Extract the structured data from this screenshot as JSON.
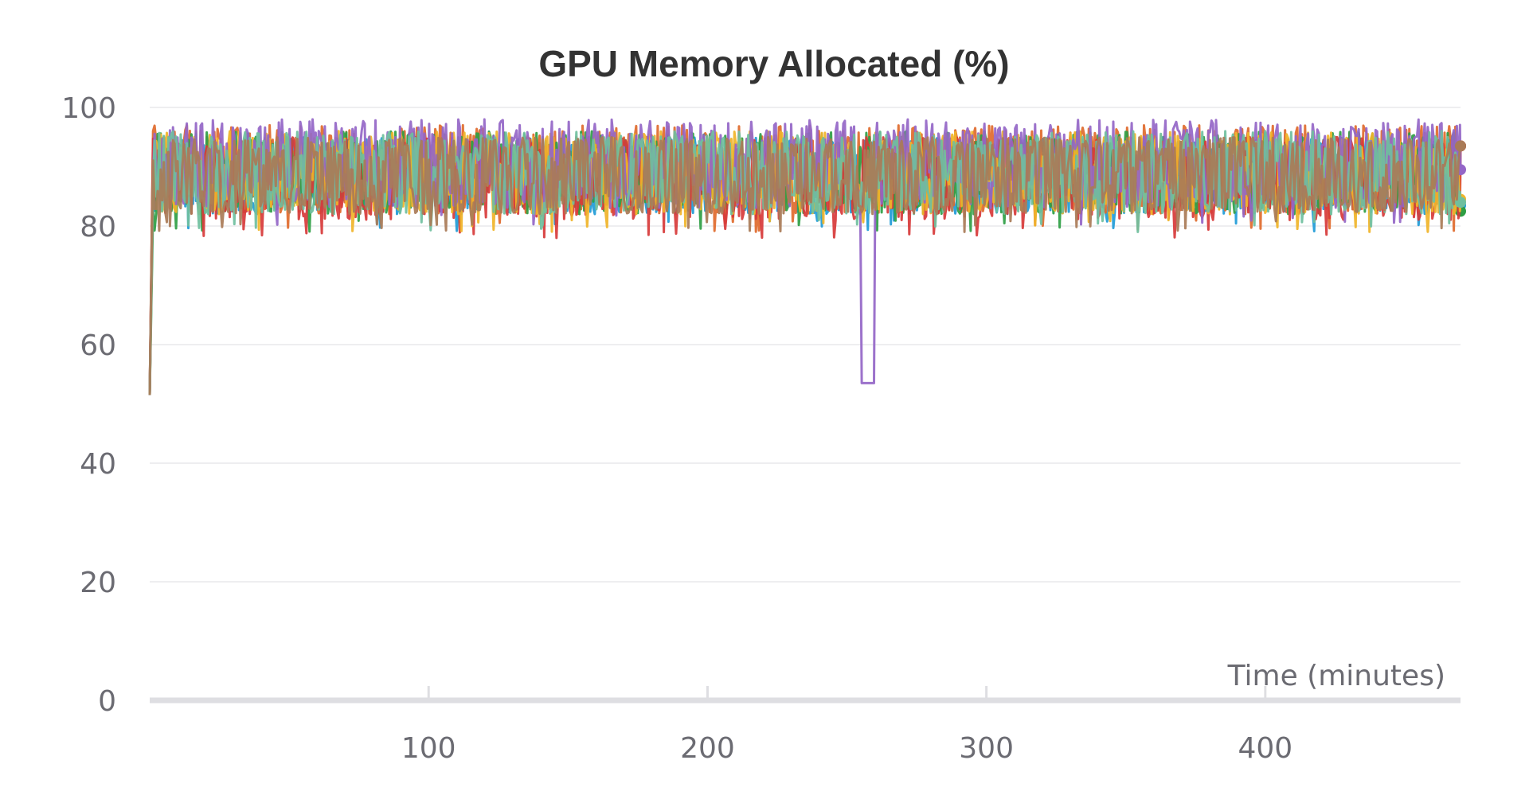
{
  "chart_data": {
    "type": "line",
    "title": "GPU Memory Allocated (%)",
    "xlabel": "Time (minutes)",
    "ylabel": "",
    "xlim": [
      0,
      470
    ],
    "ylim": [
      0,
      100
    ],
    "x_ticks": [
      100,
      200,
      300,
      400
    ],
    "y_ticks": [
      0,
      20,
      40,
      60,
      80,
      100
    ],
    "grid": true,
    "legend": "none",
    "series": [
      {
        "color": "#1f9bd7",
        "start": 51.5,
        "low": 82,
        "high": 95,
        "end": 83.5
      },
      {
        "color": "#e06a2d",
        "start": 51.5,
        "low": 82,
        "high": 97,
        "end": 93.5
      },
      {
        "color": "#2e9e44",
        "start": 51.5,
        "low": 82,
        "high": 96,
        "end": 82.5
      },
      {
        "color": "#d73a3a",
        "start": 51.5,
        "low": 81,
        "high": 95,
        "end": 93.5
      },
      {
        "color": "#f0b429",
        "start": 51.5,
        "low": 82,
        "high": 96,
        "end": 84.5
      },
      {
        "color": "#9466c7",
        "start": 51.5,
        "low": 83,
        "high": 98,
        "end": 89.5,
        "dip": {
          "from": 255,
          "to": 260,
          "value": 53.5
        }
      },
      {
        "color": "#6fbf9e",
        "start": 51.5,
        "low": 82,
        "high": 96,
        "end": 84
      },
      {
        "color": "#a97b57",
        "start": 51.5,
        "low": 82,
        "high": 95,
        "end": 93.5
      }
    ]
  }
}
